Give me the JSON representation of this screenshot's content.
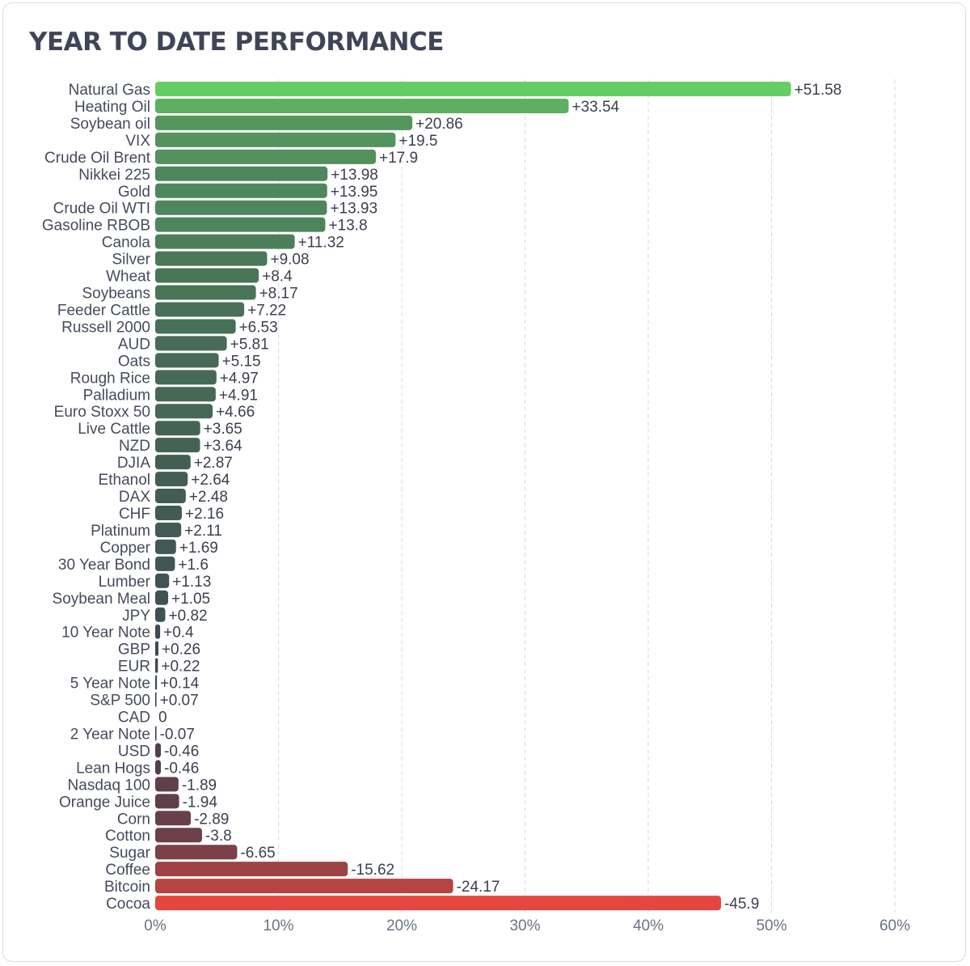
{
  "header": {
    "title": "YEAR TO DATE PERFORMANCE"
  },
  "chart_data": {
    "type": "bar",
    "orientation": "horizontal",
    "title": "YEAR TO DATE PERFORMANCE",
    "categories": [
      "Natural Gas",
      "Heating Oil",
      "Soybean oil",
      "VIX",
      "Crude Oil Brent",
      "Nikkei 225",
      "Gold",
      "Crude Oil WTI",
      "Gasoline RBOB",
      "Canola",
      "Silver",
      "Wheat",
      "Soybeans",
      "Feeder Cattle",
      "Russell 2000",
      "AUD",
      "Oats",
      "Rough Rice",
      "Palladium",
      "Euro Stoxx 50",
      "Live Cattle",
      "NZD",
      "DJIA",
      "Ethanol",
      "DAX",
      "CHF",
      "Platinum",
      "Copper",
      "30 Year Bond",
      "Lumber",
      "Soybean Meal",
      "JPY",
      "10 Year Note",
      "GBP",
      "EUR",
      "5 Year Note",
      "S&P 500",
      "CAD",
      "2 Year Note",
      "USD",
      "Lean Hogs",
      "Nasdaq 100",
      "Orange Juice",
      "Corn",
      "Cotton",
      "Sugar",
      "Coffee",
      "Bitcoin",
      "Cocoa"
    ],
    "values": [
      51.58,
      33.54,
      20.86,
      19.5,
      17.9,
      13.98,
      13.95,
      13.93,
      13.8,
      11.32,
      9.08,
      8.4,
      8.17,
      7.22,
      6.53,
      5.81,
      5.15,
      4.97,
      4.91,
      4.66,
      3.65,
      3.64,
      2.87,
      2.64,
      2.48,
      2.16,
      2.11,
      1.69,
      1.6,
      1.13,
      1.05,
      0.82,
      0.4,
      0.26,
      0.22,
      0.14,
      0.07,
      0,
      -0.07,
      -0.46,
      -0.46,
      -1.89,
      -1.94,
      -2.89,
      -3.8,
      -6.65,
      -15.62,
      -24.17,
      -45.9
    ],
    "value_labels": [
      "+51.58",
      "+33.54",
      "+20.86",
      "+19.5",
      "+17.9",
      "+13.98",
      "+13.95",
      "+13.93",
      "+13.8",
      "+11.32",
      "+9.08",
      "+8.4",
      "+8.17",
      "+7.22",
      "+6.53",
      "+5.81",
      "+5.15",
      "+4.97",
      "+4.91",
      "+4.66",
      "+3.65",
      "+3.64",
      "+2.87",
      "+2.64",
      "+2.48",
      "+2.16",
      "+2.11",
      "+1.69",
      "+1.6",
      "+1.13",
      "+1.05",
      "+0.82",
      "+0.4",
      "+0.26",
      "+0.22",
      "+0.14",
      "+0.07",
      "0",
      "-0.07",
      "-0.46",
      "-0.46",
      "-1.89",
      "-1.94",
      "-2.89",
      "-3.8",
      "-6.65",
      "-15.62",
      "-24.17",
      "-45.9"
    ],
    "x_ticks": [
      "0%",
      "10%",
      "20%",
      "30%",
      "40%",
      "50%",
      "60%"
    ],
    "x_tick_values": [
      0,
      10,
      20,
      30,
      40,
      50,
      60
    ],
    "xlim": [
      0,
      60
    ],
    "bars_show": "absolute value",
    "grid": "vertical dashed",
    "colors": {
      "positive_max": "#66cc66",
      "positive_min": "#3a4350",
      "negative_min": "#453e4c",
      "negative_max": "#e5463f",
      "grid": "#d8d9de"
    }
  }
}
